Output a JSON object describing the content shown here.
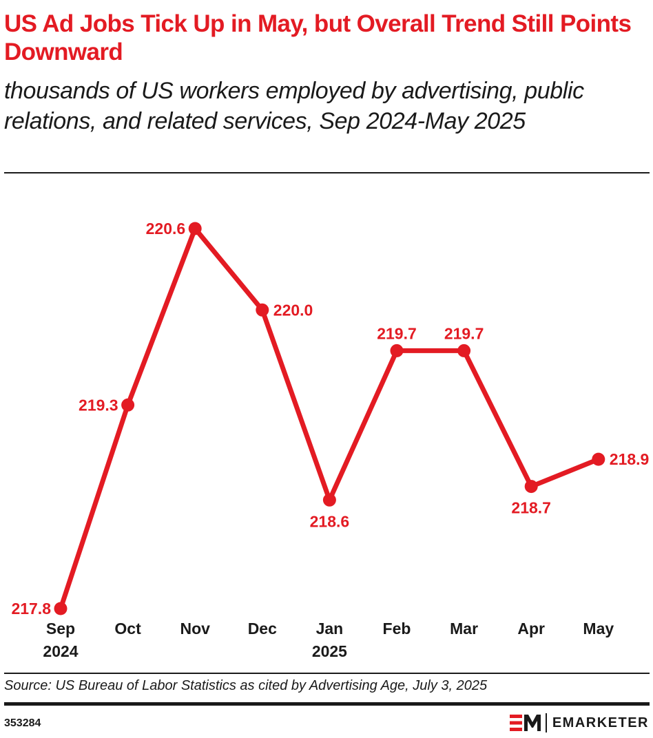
{
  "header": {
    "title": "US Ad Jobs Tick Up in May, but Overall Trend Still Points Downward",
    "subtitle": "thousands of US workers employed by advertising, public relations, and related services, Sep 2024-May 2025"
  },
  "footer": {
    "source": "Source: US Bureau of Labor Statistics as cited by Advertising Age, July 3, 2025",
    "chart_id": "353284",
    "brand_name": "EMARKETER",
    "brand_icon": "em-logo-icon"
  },
  "colors": {
    "accent": "#e31b23",
    "text": "#1a1a1a"
  },
  "chart_data": {
    "type": "line",
    "title": "US Ad Jobs Tick Up in May, but Overall Trend Still Points Downward",
    "xlabel": "",
    "ylabel": "",
    "categories": [
      [
        "Sep",
        "2024"
      ],
      [
        "Oct"
      ],
      [
        "Nov"
      ],
      [
        "Dec"
      ],
      [
        "Jan",
        "2025"
      ],
      [
        "Feb"
      ],
      [
        "Mar"
      ],
      [
        "Apr"
      ],
      [
        "May"
      ]
    ],
    "values": [
      217.8,
      219.3,
      220.6,
      220.0,
      218.6,
      219.7,
      219.7,
      218.7,
      218.9
    ],
    "labels": [
      "217.8",
      "219.3",
      "220.6",
      "220.0",
      "218.6",
      "219.7",
      "219.7",
      "218.7",
      "218.9"
    ],
    "label_positions": [
      "left",
      "left",
      "left",
      "right",
      "below",
      "above",
      "above",
      "below",
      "right"
    ],
    "ylim": [
      217.8,
      220.6
    ],
    "grid": false,
    "legend": "none",
    "series_color": "#e31b23"
  }
}
